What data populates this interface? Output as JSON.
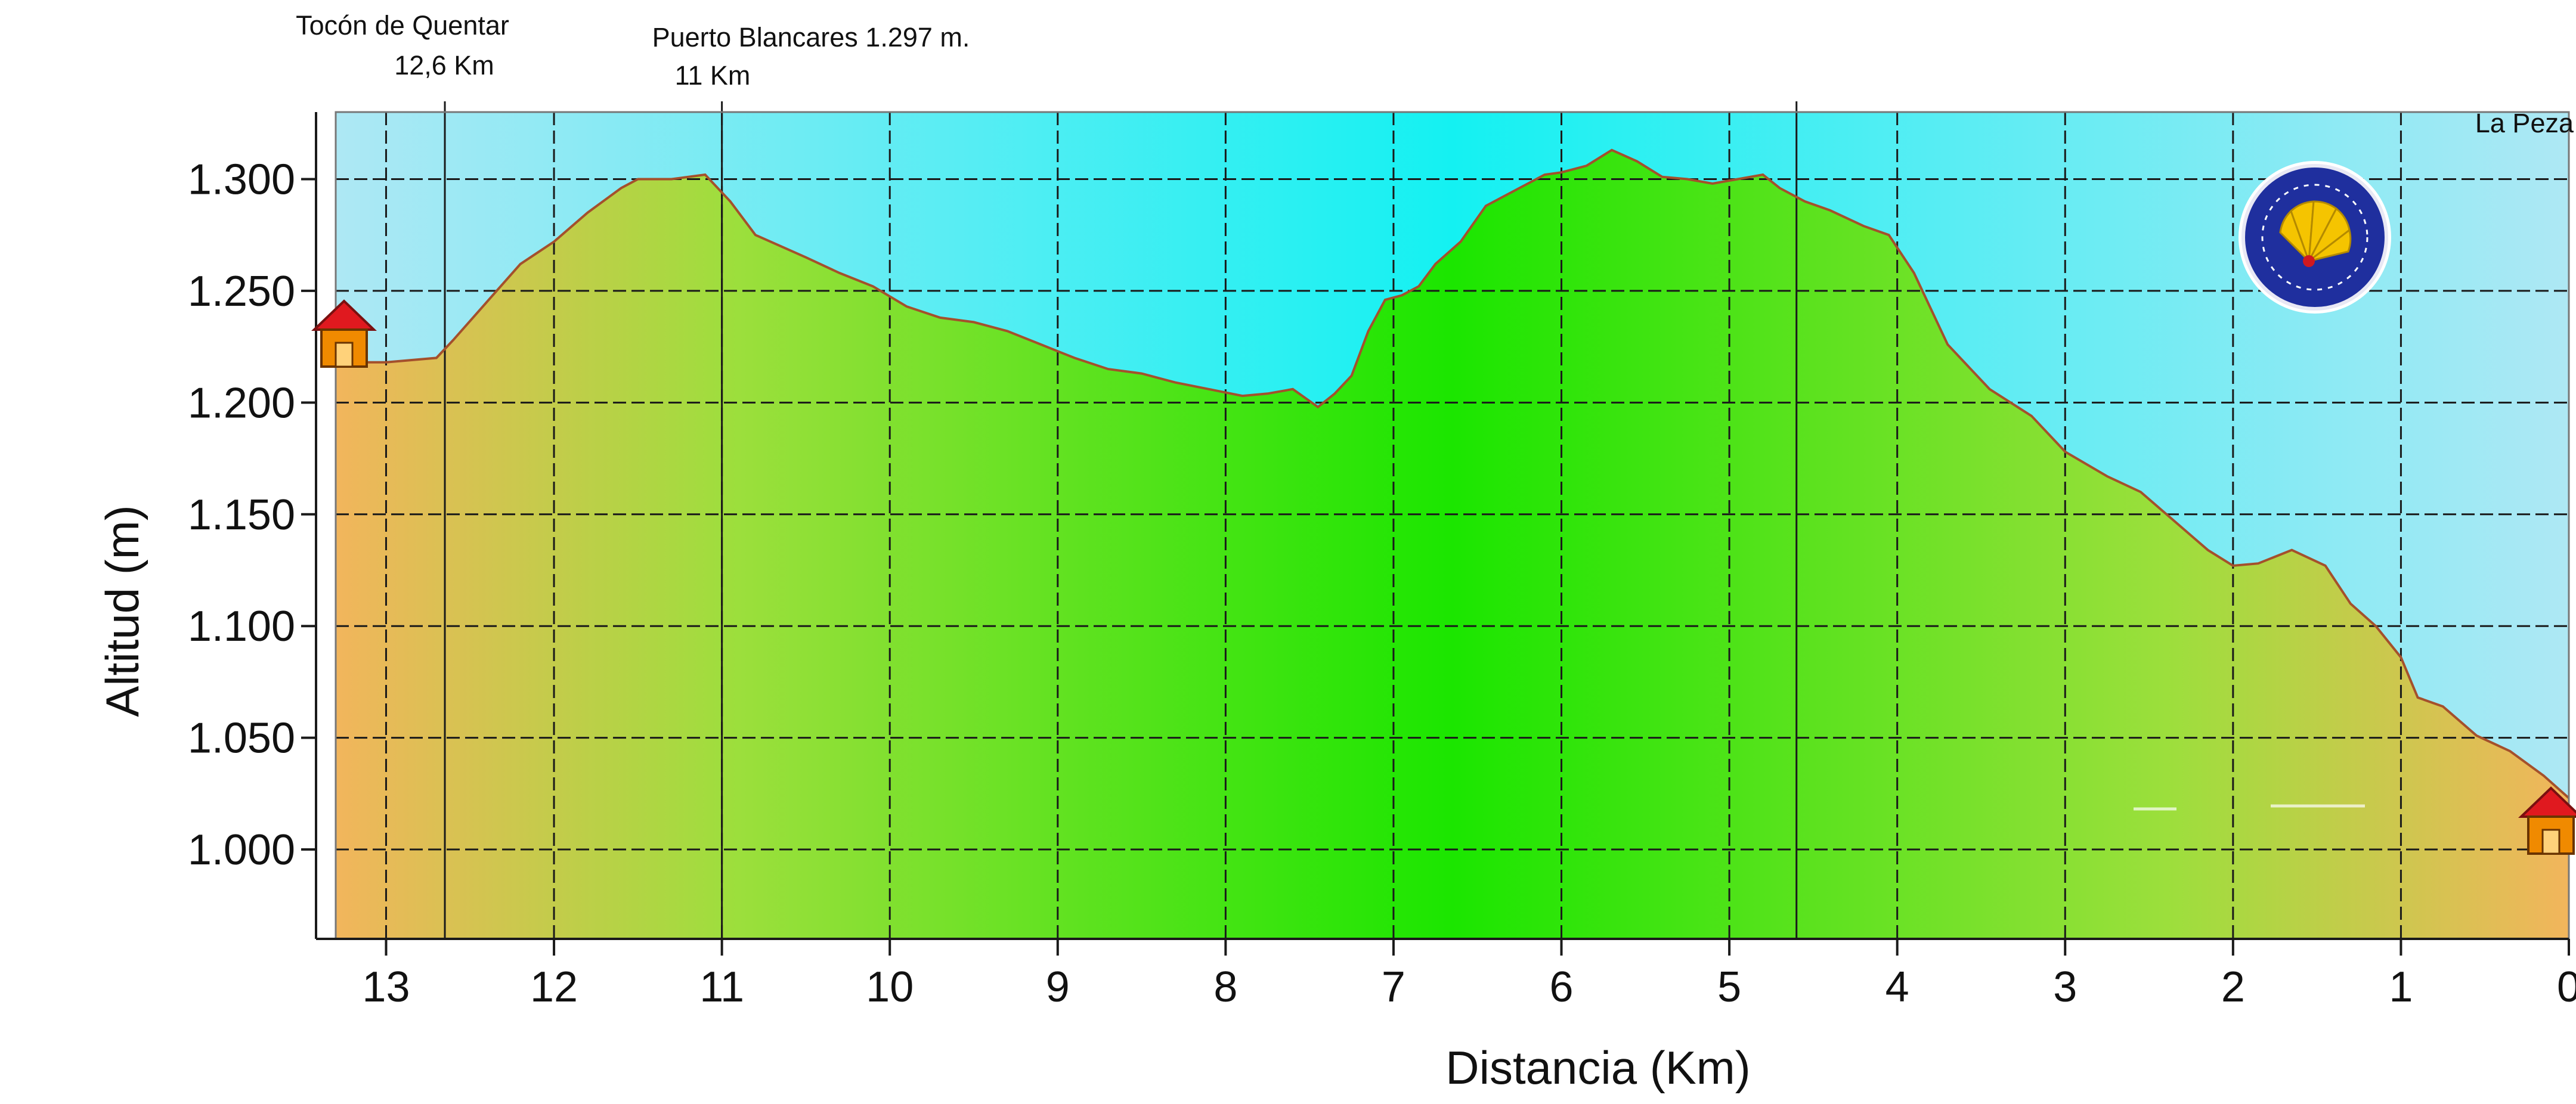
{
  "colors": {
    "sky_top": "#aee8f4",
    "sky_mid": "#14f1f2",
    "ground_edge": "#f2b55c",
    "ground_mid": "#1be600",
    "profile_line": "#a4502c",
    "grid": "#1a1a1a",
    "house_roof": "#e0191f",
    "house_body": "#f08a00",
    "badge_bg": "#1f2f9e",
    "badge_shell": "#f5c400"
  },
  "icons": [
    "house-icon-start",
    "house-icon-end",
    "camino-shell-badge-icon"
  ],
  "chart_data": {
    "type": "area",
    "title": "",
    "xlabel": "Distancia (Km)",
    "ylabel": "Altitud (m)",
    "x_reversed": true,
    "xlim": [
      13.3,
      0
    ],
    "ylim": [
      960,
      1330
    ],
    "x_ticks": [
      13,
      12,
      11,
      10,
      9,
      8,
      7,
      6,
      5,
      4,
      3,
      2,
      1,
      0
    ],
    "x_tick_labels": [
      "13",
      "12",
      "11",
      "10",
      "9",
      "8",
      "7",
      "6",
      "5",
      "4",
      "3",
      "2",
      "1",
      "0"
    ],
    "y_ticks": [
      1000,
      1050,
      1100,
      1150,
      1200,
      1250,
      1300
    ],
    "y_tick_labels": [
      "1.000",
      "1.050",
      "1.100",
      "1.150",
      "1.200",
      "1.250",
      "1.300"
    ],
    "grid": true,
    "series": [
      {
        "x": [
          13.3,
          13.0,
          12.7,
          12.6,
          12.4,
          12.2,
          12.0,
          11.8,
          11.6,
          11.5,
          11.3,
          11.1,
          10.95,
          10.8,
          10.5,
          10.3,
          10.1,
          9.9,
          9.7,
          9.5,
          9.3,
          9.1,
          8.9,
          8.7,
          8.5,
          8.3,
          8.1,
          7.9,
          7.75,
          7.6,
          7.45,
          7.35,
          7.25,
          7.15,
          7.05,
          6.95,
          6.85,
          6.75,
          6.6,
          6.45,
          6.35,
          6.2,
          6.1,
          6.0,
          5.85,
          5.7,
          5.55,
          5.4,
          5.25,
          5.1,
          4.95,
          4.8,
          4.7,
          4.55,
          4.4,
          4.2,
          4.05,
          3.9,
          3.7,
          3.45,
          3.2,
          3.0,
          2.75,
          2.55,
          2.35,
          2.15,
          2.0,
          1.85,
          1.65,
          1.45,
          1.3,
          1.15,
          1.0,
          0.9,
          0.75,
          0.55,
          0.35,
          0.15,
          0.0
        ],
        "y": [
          1218,
          1218,
          1220,
          1228,
          1245,
          1262,
          1272,
          1285,
          1296,
          1300,
          1300,
          1302,
          1290,
          1275,
          1265,
          1258,
          1252,
          1243,
          1238,
          1236,
          1232,
          1226,
          1220,
          1215,
          1213,
          1209,
          1206,
          1203,
          1204,
          1206,
          1198,
          1204,
          1212,
          1232,
          1246,
          1248,
          1252,
          1262,
          1272,
          1288,
          1292,
          1298,
          1302,
          1303,
          1306,
          1313,
          1308,
          1301,
          1300,
          1298,
          1300,
          1302,
          1296,
          1290,
          1286,
          1279,
          1275,
          1258,
          1226,
          1206,
          1194,
          1178,
          1167,
          1160,
          1147,
          1134,
          1127,
          1128,
          1134,
          1127,
          1110,
          1100,
          1086,
          1068,
          1064,
          1051,
          1044,
          1033,
          1023
        ]
      }
    ],
    "annotations": [
      {
        "line1": "Tocón de Quentar",
        "line2": "12,6 Km",
        "x": 12.65
      },
      {
        "line1": "Puerto Blancares 1.297 m.",
        "line2": "11 Km",
        "x": 11.0
      },
      {
        "line1": "La Peza",
        "line2": "",
        "x": 0.0
      },
      {
        "line1": "",
        "line2": "",
        "x": 4.6
      }
    ]
  }
}
